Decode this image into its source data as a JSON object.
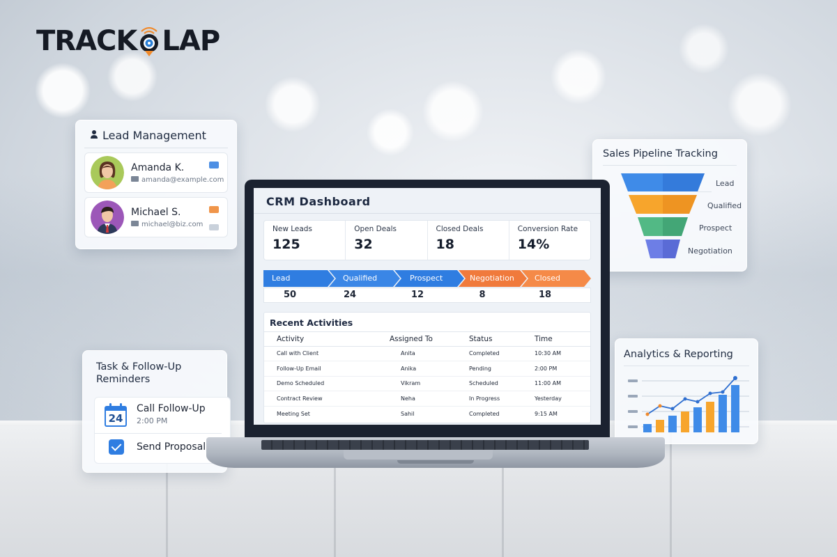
{
  "brand": {
    "logo_left": "TRACK",
    "logo_right": "LAP"
  },
  "lead_management": {
    "title": "Lead Management",
    "leads": [
      {
        "name": "Amanda K.",
        "email": "amanda@example.com"
      },
      {
        "name": "Michael S.",
        "email": "michael@biz.com"
      }
    ]
  },
  "tasks": {
    "title_line1": "Task & Follow-Up",
    "title_line2": "Reminders",
    "calendar_day": "24",
    "item1": "Call Follow-Up",
    "item1_time": "2:00 PM",
    "item2": "Send Proposal"
  },
  "pipeline": {
    "title": "Sales Pipeline Tracking",
    "stages": [
      "Lead",
      "Qualified",
      "Prospect",
      "Negotiation"
    ]
  },
  "analytics": {
    "title": "Analytics & Reporting"
  },
  "dashboard": {
    "title": "CRM Dashboard",
    "stats": [
      {
        "label": "New Leads",
        "value": "125"
      },
      {
        "label": "Open Deals",
        "value": "32"
      },
      {
        "label": "Closed Deals",
        "value": "18"
      },
      {
        "label": "Conversion Rate",
        "value": "14%"
      }
    ],
    "stages": [
      {
        "label": "Lead",
        "count": "50"
      },
      {
        "label": "Qualified",
        "count": "24"
      },
      {
        "label": "Prospect",
        "count": "12"
      },
      {
        "label": "Negotiation",
        "count": "8"
      },
      {
        "label": "Closed",
        "count": "18"
      }
    ],
    "activities_title": "Recent Activities",
    "columns": [
      "Activity",
      "Assigned To",
      "Status",
      "Time"
    ],
    "rows": [
      [
        "Call with Client",
        "Anita",
        "Completed",
        "10:30 AM"
      ],
      [
        "Follow-Up Email",
        "Anika",
        "Pending",
        "2:00 PM"
      ],
      [
        "Demo Scheduled",
        "Vikram",
        "Scheduled",
        "11:00 AM"
      ],
      [
        "Contract Review",
        "Neha",
        "In Progress",
        "Yesterday"
      ],
      [
        "Meeting Set",
        "Sahil",
        "Completed",
        "9:15 AM"
      ]
    ]
  },
  "colors": {
    "blue": "#2f7de1",
    "orange": "#f07a3c",
    "dark_text": "#1c2840"
  }
}
